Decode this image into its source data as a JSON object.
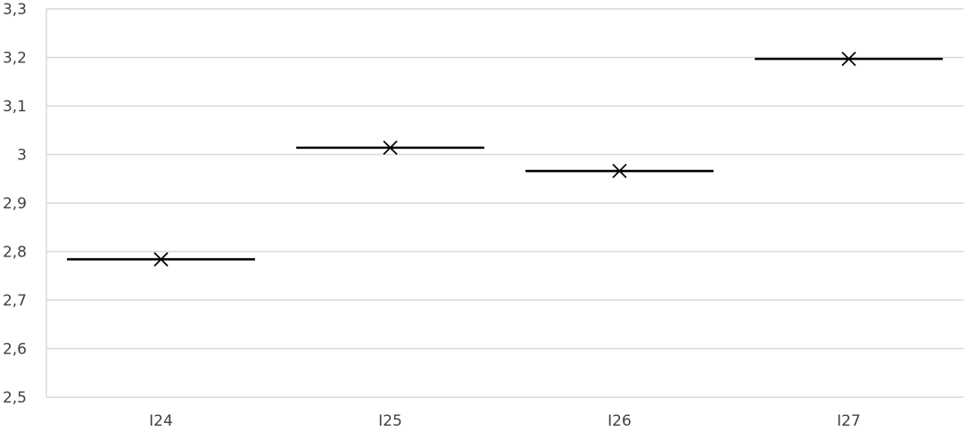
{
  "chart_data": {
    "type": "scatter",
    "title": "",
    "xlabel": "",
    "ylabel": "",
    "categories": [
      "I24",
      "I25",
      "I26",
      "I27"
    ],
    "values": [
      2.784,
      3.014,
      2.966,
      3.197
    ],
    "ylim": [
      2.5,
      3.3
    ],
    "y_ticks": [
      "2,5",
      "2,6",
      "2,7",
      "2,8",
      "2,9",
      "3",
      "3,1",
      "3,2",
      "3,3"
    ],
    "grid": true,
    "legend": "none",
    "marker": "x",
    "colors": {
      "marks": "#000000",
      "grid": "#d9d9d9",
      "tick_text": "#404040"
    }
  }
}
